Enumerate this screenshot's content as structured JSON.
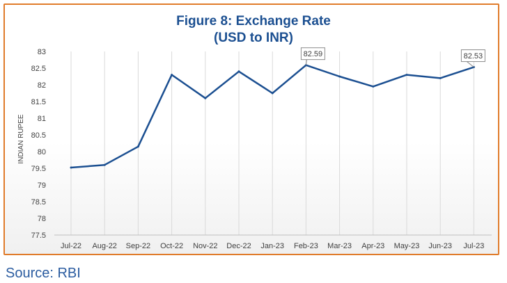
{
  "chart_data": {
    "type": "line",
    "title_line1": "Figure 8: Exchange Rate",
    "title_line2": "(USD to INR)",
    "xlabel": "",
    "ylabel": "INDIAN RUPEE",
    "ylim": [
      77.5,
      83
    ],
    "yticks": [
      "77.5",
      "78",
      "78.5",
      "79",
      "79.5",
      "80",
      "80.5",
      "81",
      "81.5",
      "82",
      "82.5",
      "83"
    ],
    "categories": [
      "Jul-22",
      "Aug-22",
      "Sep-22",
      "Oct-22",
      "Nov-22",
      "Dec-22",
      "Jan-23",
      "Feb-23",
      "Mar-23",
      "Apr-23",
      "May-23",
      "Jun-23",
      "Jul-23"
    ],
    "series": [
      {
        "values": [
          79.52,
          79.6,
          80.15,
          82.3,
          81.6,
          82.4,
          81.75,
          82.59,
          82.25,
          81.95,
          82.3,
          82.2,
          82.53
        ]
      }
    ],
    "data_labels": [
      {
        "index": 7,
        "text": "82.59"
      },
      {
        "index": 12,
        "text": "82.53"
      }
    ],
    "grid": "vertical",
    "line_color": "#1b4f91"
  },
  "frame_color": "#e07b2a",
  "source": "Source: RBI"
}
